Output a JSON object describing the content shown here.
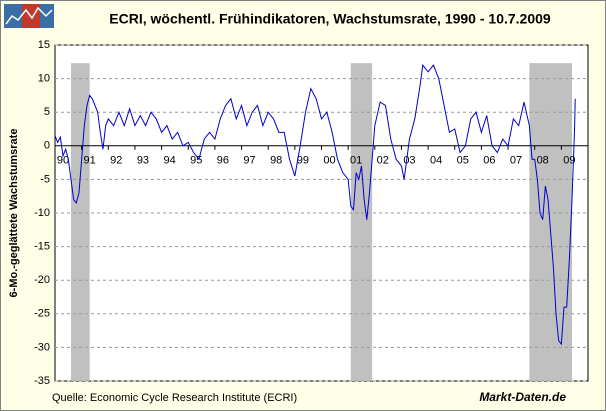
{
  "chart_data": {
    "type": "line",
    "title": "ECRI, wöchentl. Frühindikatoren, Wachstumsrate, 1990 - 10.7.2009",
    "y_label": "6-Mo.-geglättete Wachstumsrate",
    "source": "Quelle: Economic Cycle Research Institute (ECRI)",
    "brand": "Markt-Daten.de",
    "xlim": [
      1990,
      2010
    ],
    "xticks": [
      {
        "value": 1990,
        "label": "90"
      },
      {
        "value": 1991,
        "label": "91"
      },
      {
        "value": 1992,
        "label": "92"
      },
      {
        "value": 1993,
        "label": "93"
      },
      {
        "value": 1994,
        "label": "94"
      },
      {
        "value": 1995,
        "label": "95"
      },
      {
        "value": 1996,
        "label": "96"
      },
      {
        "value": 1997,
        "label": "97"
      },
      {
        "value": 1998,
        "label": "98"
      },
      {
        "value": 1999,
        "label": "99"
      },
      {
        "value": 2000,
        "label": "00"
      },
      {
        "value": 2001,
        "label": "01"
      },
      {
        "value": 2002,
        "label": "02"
      },
      {
        "value": 2003,
        "label": "03"
      },
      {
        "value": 2004,
        "label": "04"
      },
      {
        "value": 2005,
        "label": "05"
      },
      {
        "value": 2006,
        "label": "06"
      },
      {
        "value": 2007,
        "label": "07"
      },
      {
        "value": 2008,
        "label": "08"
      },
      {
        "value": 2009,
        "label": "09"
      }
    ],
    "ylim": [
      -35,
      15
    ],
    "yticks": [
      -35,
      -30,
      -25,
      -20,
      -15,
      -10,
      -5,
      0,
      5,
      10,
      15
    ],
    "grid": true,
    "recessions": [
      [
        1990.6,
        1991.3
      ],
      [
        2001.1,
        2001.9
      ],
      [
        2007.8,
        2009.4
      ]
    ],
    "recession_color": "#c0c0c0",
    "series": [
      {
        "color": "#0000cc",
        "x": [
          1990.0,
          1990.1,
          1990.2,
          1990.3,
          1990.4,
          1990.5,
          1990.6,
          1990.7,
          1990.8,
          1990.9,
          1991.0,
          1991.1,
          1991.2,
          1991.3,
          1991.4,
          1991.5,
          1991.6,
          1991.7,
          1991.8,
          1991.9,
          1992.0,
          1992.2,
          1992.4,
          1992.6,
          1992.8,
          1993.0,
          1993.2,
          1993.4,
          1993.6,
          1993.8,
          1994.0,
          1994.2,
          1994.4,
          1994.6,
          1994.8,
          1995.0,
          1995.2,
          1995.4,
          1995.6,
          1995.8,
          1996.0,
          1996.2,
          1996.4,
          1996.6,
          1996.8,
          1997.0,
          1997.2,
          1997.4,
          1997.6,
          1997.8,
          1998.0,
          1998.2,
          1998.4,
          1998.6,
          1998.8,
          1999.0,
          1999.2,
          1999.4,
          1999.6,
          1999.8,
          2000.0,
          2000.2,
          2000.4,
          2000.6,
          2000.8,
          2001.0,
          2001.1,
          2001.2,
          2001.3,
          2001.4,
          2001.5,
          2001.6,
          2001.7,
          2001.8,
          2001.9,
          2002.0,
          2002.2,
          2002.4,
          2002.6,
          2002.8,
          2003.0,
          2003.1,
          2003.3,
          2003.5,
          2003.7,
          2003.8,
          2004.0,
          2004.2,
          2004.4,
          2004.6,
          2004.8,
          2005.0,
          2005.2,
          2005.4,
          2005.6,
          2005.8,
          2006.0,
          2006.2,
          2006.4,
          2006.6,
          2006.8,
          2007.0,
          2007.2,
          2007.4,
          2007.6,
          2007.8,
          2007.9,
          2008.0,
          2008.1,
          2008.2,
          2008.3,
          2008.4,
          2008.5,
          2008.6,
          2008.7,
          2008.8,
          2008.9,
          2009.0,
          2009.1,
          2009.2,
          2009.3,
          2009.4,
          2009.5,
          2009.52
        ],
        "values": [
          1.5,
          0.5,
          1.3,
          -1.5,
          -0.5,
          -2,
          -5,
          -8,
          -8.5,
          -7,
          -2,
          3,
          6,
          7.5,
          7,
          6,
          5,
          2,
          -0.5,
          3,
          4,
          3,
          5,
          3,
          5.5,
          3,
          4.5,
          3,
          5,
          4,
          2,
          3,
          1,
          2,
          0,
          0.5,
          -1,
          -2,
          1,
          2,
          1,
          4,
          6,
          7,
          4,
          6,
          3,
          5,
          6,
          3,
          5,
          4,
          2,
          2,
          -2,
          -4.5,
          0,
          5,
          8.5,
          7,
          4,
          5,
          2,
          -2,
          -4,
          -5,
          -9,
          -9.5,
          -4,
          -5,
          -3,
          -8,
          -11,
          -7,
          -2,
          3,
          6.5,
          6,
          1,
          -2,
          -3,
          -5,
          1,
          4,
          9,
          12,
          11,
          12,
          10,
          6,
          2,
          2.5,
          -1,
          0,
          4,
          5,
          2,
          4.5,
          0,
          -1,
          1,
          0,
          4,
          3,
          6.5,
          3,
          -2,
          -2,
          -5,
          -10,
          -11,
          -6,
          -8,
          -13,
          -18,
          -25,
          -29,
          -29.5,
          -24,
          -24,
          -17,
          -8,
          3,
          7
        ]
      }
    ]
  }
}
